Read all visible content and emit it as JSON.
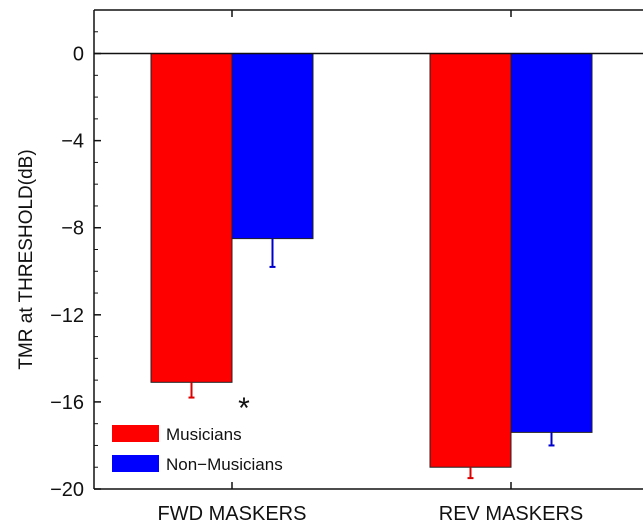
{
  "chart_data": {
    "type": "bar",
    "categories": [
      "FWD MASKERS",
      "REV MASKERS"
    ],
    "series": [
      {
        "name": "Musicians",
        "color": "#ff0000",
        "values": [
          -15.1,
          -19.0
        ],
        "errors": [
          0.7,
          0.5
        ]
      },
      {
        "name": "Non−Musicians",
        "color": "#0000ff",
        "values": [
          -8.5,
          -17.4
        ],
        "errors": [
          1.3,
          0.6
        ]
      }
    ],
    "title": "",
    "xlabel": "",
    "ylabel": "TMR at THRESHOLD(dB)",
    "ylim": [
      -20,
      2
    ],
    "yticks": [
      0,
      -4,
      -8,
      -12,
      -16,
      -20
    ],
    "ytick_labels": [
      "0",
      "−4",
      "−8",
      "−12",
      "−16",
      "−20"
    ],
    "error_bar_color": [
      "#dd0000",
      "#0000cc"
    ],
    "annotations": [
      {
        "text": "*",
        "category_index": 0
      }
    ],
    "legend": {
      "placement": "bottom-left"
    },
    "grid": false
  }
}
